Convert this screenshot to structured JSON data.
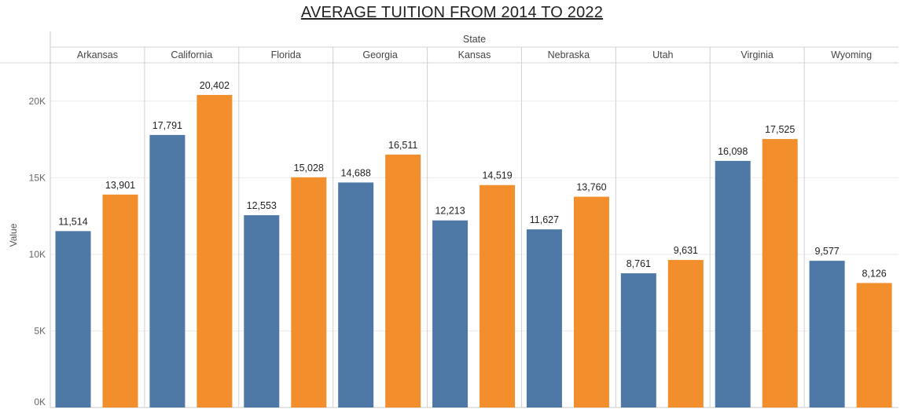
{
  "colors": {
    "series_a": "#4e79a7",
    "series_b": "#f28e2b"
  },
  "chart_data": {
    "type": "bar",
    "title": "AVERAGE TUITION FROM 2014 TO 2022",
    "column_header": "State",
    "ylabel": "Value",
    "ylim": [
      0,
      22500
    ],
    "yticks": [
      0,
      5000,
      10000,
      15000,
      20000
    ],
    "ytick_labels": [
      "0K",
      "5K",
      "10K",
      "15K",
      "20K"
    ],
    "grid": true,
    "categories": [
      "Arkansas",
      "California",
      "Florida",
      "Georgia",
      "Kansas",
      "Nebraska",
      "Utah",
      "Virginia",
      "Wyoming"
    ],
    "series": [
      {
        "values": [
          11514,
          17791,
          12553,
          14688,
          12213,
          11627,
          8761,
          16098,
          9577
        ],
        "labels": [
          "11,514",
          "17,791",
          "12,553",
          "14,688",
          "12,213",
          "11,627",
          "8,761",
          "16,098",
          "9,577"
        ]
      },
      {
        "values": [
          13901,
          20402,
          15028,
          16511,
          14519,
          13760,
          9631,
          17525,
          8126
        ],
        "labels": [
          "13,901",
          "20,402",
          "15,028",
          "16,511",
          "14,519",
          "13,760",
          "9,631",
          "17,525",
          "8,126"
        ]
      }
    ]
  }
}
